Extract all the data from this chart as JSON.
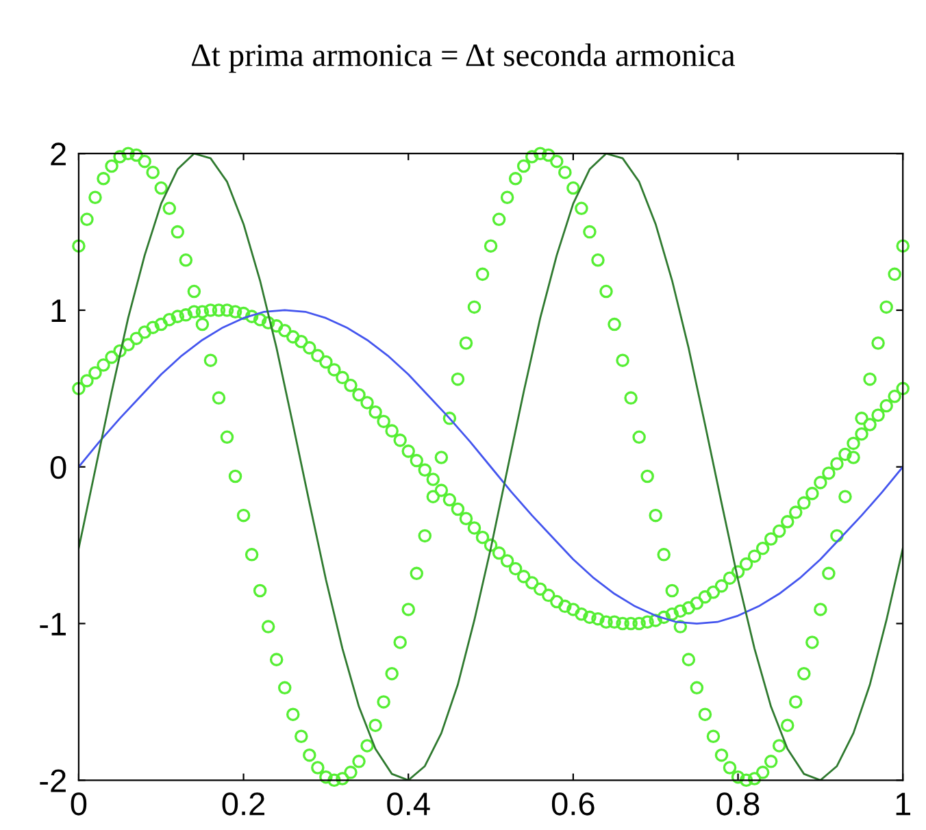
{
  "chart_data": {
    "type": "line",
    "title": "Δt prima armonica = Δt seconda armonica",
    "xlim": [
      0,
      1
    ],
    "ylim": [
      -2,
      2
    ],
    "xticks": [
      0,
      0.2,
      0.4,
      0.6,
      0.8,
      1
    ],
    "yticks": [
      -2,
      -1,
      0,
      1,
      2
    ],
    "grid": false,
    "legend": false,
    "x": [
      0,
      0.01,
      0.02,
      0.03,
      0.04,
      0.05,
      0.06,
      0.07,
      0.08,
      0.09,
      0.1,
      0.11,
      0.12,
      0.13,
      0.14,
      0.15,
      0.16,
      0.17,
      0.18,
      0.19,
      0.2,
      0.21,
      0.22,
      0.23,
      0.24,
      0.25,
      0.26,
      0.27,
      0.28,
      0.29,
      0.3,
      0.31,
      0.32,
      0.33,
      0.34,
      0.35,
      0.36,
      0.37,
      0.38,
      0.39,
      0.4,
      0.41,
      0.42,
      0.43,
      0.44,
      0.45,
      0.46,
      0.47,
      0.48,
      0.49,
      0.5,
      0.51,
      0.52,
      0.53,
      0.54,
      0.55,
      0.56,
      0.57,
      0.58,
      0.59,
      0.6,
      0.61,
      0.62,
      0.63,
      0.64,
      0.65,
      0.66,
      0.67,
      0.68,
      0.69,
      0.7,
      0.71,
      0.72,
      0.73,
      0.74,
      0.75,
      0.76,
      0.77,
      0.78,
      0.79,
      0.8,
      0.81,
      0.82,
      0.83,
      0.84,
      0.85,
      0.86,
      0.87,
      0.88,
      0.89,
      0.9,
      0.91,
      0.92,
      0.93,
      0.94,
      0.95,
      0.96,
      0.97,
      0.98,
      0.99,
      1
    ],
    "series": [
      {
        "color": "#4455ee",
        "line_style": "solid",
        "x": [
          0,
          0.025,
          0.05,
          0.075,
          0.1,
          0.125,
          0.15,
          0.175,
          0.2,
          0.225,
          0.25,
          0.275,
          0.3,
          0.325,
          0.35,
          0.375,
          0.4,
          0.425,
          0.45,
          0.475,
          0.5,
          0.525,
          0.55,
          0.575,
          0.6,
          0.625,
          0.65,
          0.675,
          0.7,
          0.725,
          0.75,
          0.775,
          0.8,
          0.825,
          0.85,
          0.875,
          0.9,
          0.925,
          0.95,
          0.975,
          1
        ],
        "values": [
          0,
          0.16,
          0.31,
          0.45,
          0.59,
          0.71,
          0.81,
          0.89,
          0.95,
          0.99,
          1.0,
          0.99,
          0.95,
          0.89,
          0.81,
          0.71,
          0.59,
          0.45,
          0.31,
          0.16,
          0,
          -0.16,
          -0.31,
          -0.45,
          -0.59,
          -0.71,
          -0.81,
          -0.89,
          -0.95,
          -0.99,
          -1.0,
          -0.99,
          -0.95,
          -0.89,
          -0.81,
          -0.71,
          -0.59,
          -0.45,
          -0.31,
          -0.16,
          0
        ]
      },
      {
        "color": "#2f7a2f",
        "line_style": "solid",
        "x": [
          0,
          0.02,
          0.04,
          0.06,
          0.08,
          0.1,
          0.12,
          0.14,
          0.16,
          0.18,
          0.2,
          0.22,
          0.24,
          0.26,
          0.28,
          0.3,
          0.32,
          0.34,
          0.36,
          0.38,
          0.4,
          0.42,
          0.44,
          0.46,
          0.48,
          0.5,
          0.52,
          0.54,
          0.56,
          0.58,
          0.6,
          0.62,
          0.64,
          0.66,
          0.68,
          0.7,
          0.72,
          0.74,
          0.76,
          0.78,
          0.8,
          0.82,
          0.84,
          0.86,
          0.88,
          0.9,
          0.92,
          0.94,
          0.96,
          0.98,
          1
        ],
        "values": [
          -0.52,
          -0.02,
          0.48,
          0.95,
          1.35,
          1.68,
          1.9,
          2.0,
          1.97,
          1.82,
          1.55,
          1.19,
          0.76,
          0.27,
          -0.23,
          -0.72,
          -1.16,
          -1.53,
          -1.8,
          -1.96,
          -2.0,
          -1.91,
          -1.7,
          -1.39,
          -0.98,
          -0.52,
          -0.02,
          0.48,
          0.95,
          1.35,
          1.68,
          1.9,
          2.0,
          1.97,
          1.82,
          1.55,
          1.19,
          0.76,
          0.27,
          -0.23,
          -0.72,
          -1.16,
          -1.53,
          -1.8,
          -1.96,
          -2.0,
          -1.91,
          -1.7,
          -1.39,
          -0.98,
          -0.52
        ]
      },
      {
        "type": "scatter",
        "marker": "circle",
        "color": "#55ee33",
        "values": [
          0.5,
          0.55,
          0.6,
          0.65,
          0.7,
          0.74,
          0.78,
          0.82,
          0.86,
          0.89,
          0.91,
          0.94,
          0.96,
          0.97,
          0.99,
          0.99,
          1.0,
          1.0,
          1.0,
          0.99,
          0.98,
          0.96,
          0.94,
          0.92,
          0.9,
          0.87,
          0.83,
          0.8,
          0.76,
          0.71,
          0.67,
          0.62,
          0.57,
          0.52,
          0.46,
          0.41,
          0.35,
          0.29,
          0.23,
          0.17,
          0.1,
          0.04,
          -0.02,
          -0.08,
          -0.15,
          -0.21,
          -0.27,
          -0.33,
          -0.39,
          -0.45,
          -0.5,
          -0.55,
          -0.6,
          -0.65,
          -0.7,
          -0.74,
          -0.78,
          -0.82,
          -0.86,
          -0.89,
          -0.91,
          -0.94,
          -0.96,
          -0.97,
          -0.99,
          -0.99,
          -1.0,
          -1.0,
          -1.0,
          -0.99,
          -0.98,
          -0.96,
          -0.94,
          -0.92,
          -0.9,
          -0.87,
          -0.83,
          -0.8,
          -0.76,
          -0.71,
          -0.67,
          -0.62,
          -0.57,
          -0.52,
          -0.46,
          -0.41,
          -0.35,
          -0.29,
          -0.23,
          -0.17,
          -0.1,
          -0.04,
          0.02,
          0.08,
          0.15,
          0.21,
          0.27,
          0.33,
          0.39,
          0.45,
          0.5
        ]
      },
      {
        "type": "scatter",
        "marker": "circle",
        "color": "#55ee33",
        "values": [
          1.41,
          1.58,
          1.72,
          1.84,
          1.92,
          1.98,
          2.0,
          1.99,
          1.95,
          1.88,
          1.78,
          1.65,
          1.5,
          1.32,
          1.12,
          0.91,
          0.68,
          0.44,
          0.19,
          -0.06,
          -0.31,
          -0.56,
          -0.79,
          -1.02,
          -1.23,
          -1.41,
          -1.58,
          -1.72,
          -1.84,
          -1.92,
          -1.98,
          -2.0,
          -1.99,
          -1.95,
          -1.88,
          -1.78,
          -1.65,
          -1.5,
          -1.32,
          -1.12,
          -0.91,
          -0.68,
          -0.44,
          -0.19,
          0.06,
          0.31,
          0.56,
          0.79,
          1.02,
          1.23,
          1.41,
          1.58,
          1.72,
          1.84,
          1.92,
          1.98,
          2.0,
          1.99,
          1.95,
          1.88,
          1.78,
          1.65,
          1.5,
          1.32,
          1.12,
          0.91,
          0.68,
          0.44,
          0.19,
          -0.06,
          -0.31,
          -0.56,
          -0.79,
          -1.02,
          -1.23,
          -1.41,
          -1.58,
          -1.72,
          -1.84,
          -1.92,
          -1.98,
          -2.0,
          -1.99,
          -1.95,
          -1.88,
          -1.78,
          -1.65,
          -1.5,
          -1.32,
          -1.12,
          -0.91,
          -0.68,
          -0.44,
          -0.19,
          0.06,
          0.31,
          0.56,
          0.79,
          1.02,
          1.23,
          1.41
        ]
      }
    ]
  }
}
